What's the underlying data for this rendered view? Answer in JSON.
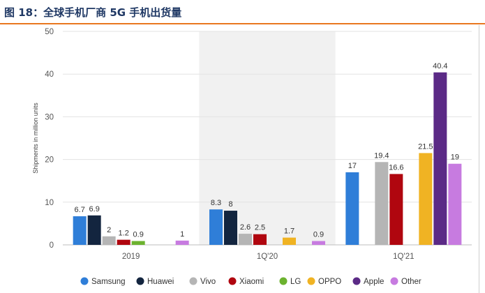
{
  "title": "图 18：全球手机厂商 5G 手机出货量",
  "chart_data": {
    "type": "bar",
    "title": "",
    "ylabel": "Shipments in million units",
    "xlabel": "",
    "ylim": [
      0,
      50
    ],
    "yticks": [
      0,
      10,
      20,
      30,
      40,
      50
    ],
    "grid": true,
    "legend_position": "bottom",
    "categories": [
      "2019",
      "1Q'20",
      "1Q'21"
    ],
    "highlighted_category": "1Q'20",
    "series": [
      {
        "name": "Samsung",
        "color": "#2f7ed8",
        "values": [
          6.7,
          8.3,
          17
        ]
      },
      {
        "name": "Huawei",
        "color": "#13253f",
        "values": [
          6.9,
          8,
          null
        ]
      },
      {
        "name": "Vivo",
        "color": "#b5b5b5",
        "values": [
          2,
          2.6,
          19.4
        ]
      },
      {
        "name": "Xiaomi",
        "color": "#b0060f",
        "values": [
          1.2,
          2.5,
          16.6
        ]
      },
      {
        "name": "LG",
        "color": "#6cb22f",
        "values": [
          0.9,
          null,
          null
        ]
      },
      {
        "name": "OPPO",
        "color": "#f0b323",
        "values": [
          null,
          1.7,
          21.5
        ]
      },
      {
        "name": "Apple",
        "color": "#5b2a86",
        "values": [
          null,
          null,
          40.4
        ]
      },
      {
        "name": "Other",
        "color": "#c77be0",
        "values": [
          1,
          0.9,
          19
        ]
      }
    ]
  }
}
